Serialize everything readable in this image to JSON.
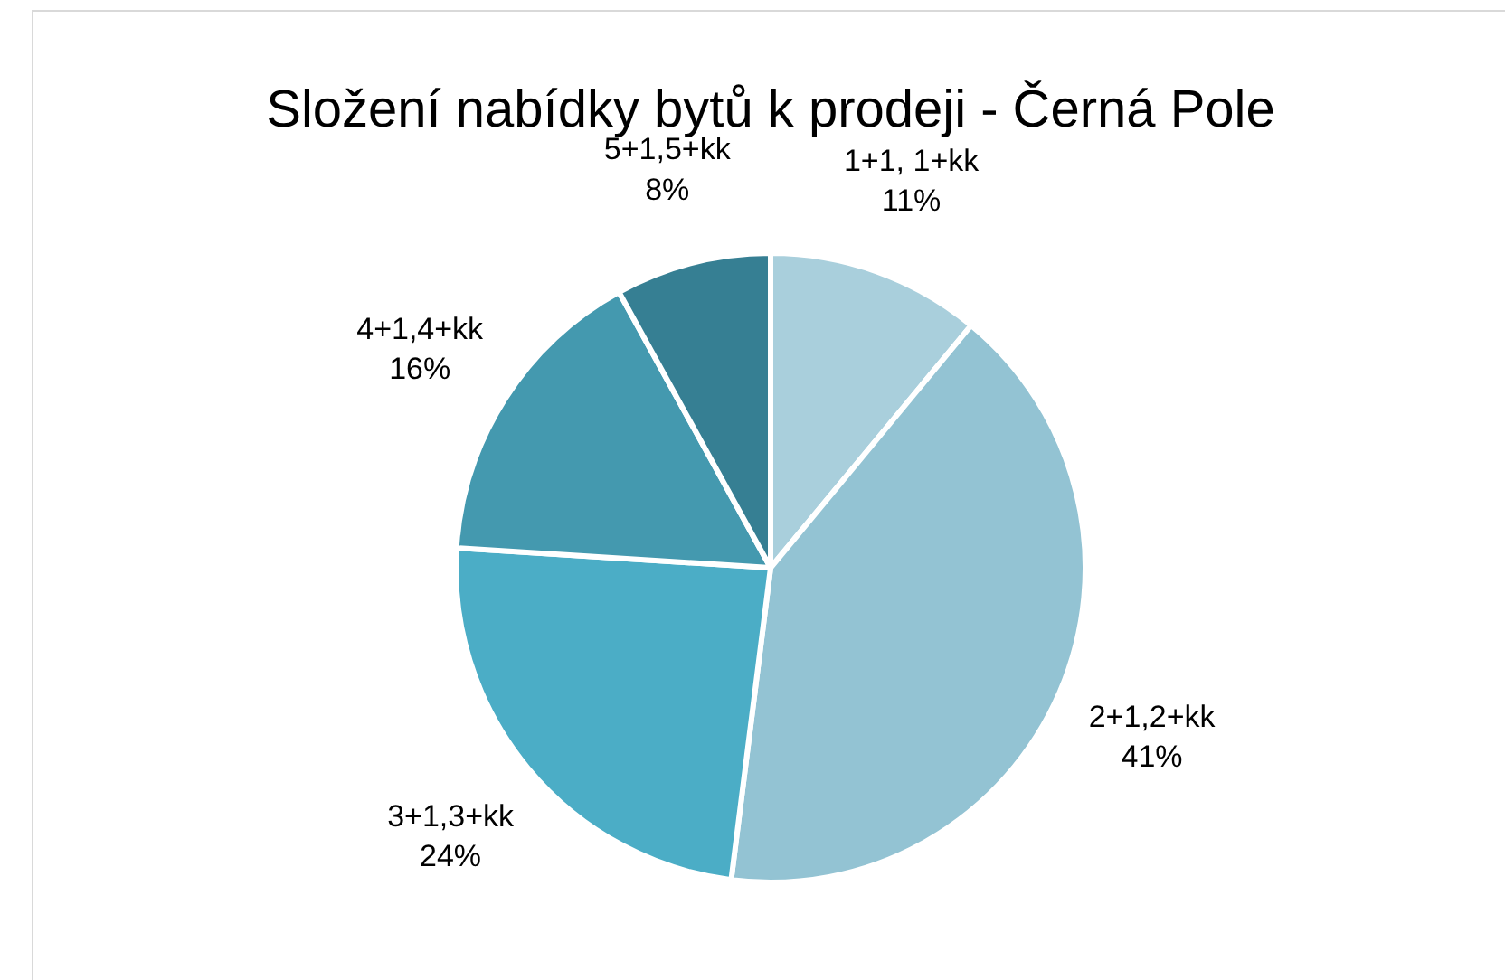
{
  "chart_data": {
    "type": "pie",
    "title": "Složení nabídky bytů k prodeji - Černá Pole",
    "categories": [
      "1+1, 1+kk",
      "2+1,2+kk",
      "3+1,3+kk",
      "4+1,4+kk",
      "5+1,5+kk"
    ],
    "values": [
      11,
      41,
      24,
      16,
      8
    ],
    "value_labels": [
      "11%",
      "41%",
      "24%",
      "16%",
      "8%"
    ],
    "colors": [
      "#a9cfdc",
      "#93c3d3",
      "#4badc6",
      "#4499af",
      "#367f93"
    ],
    "legend": false
  }
}
